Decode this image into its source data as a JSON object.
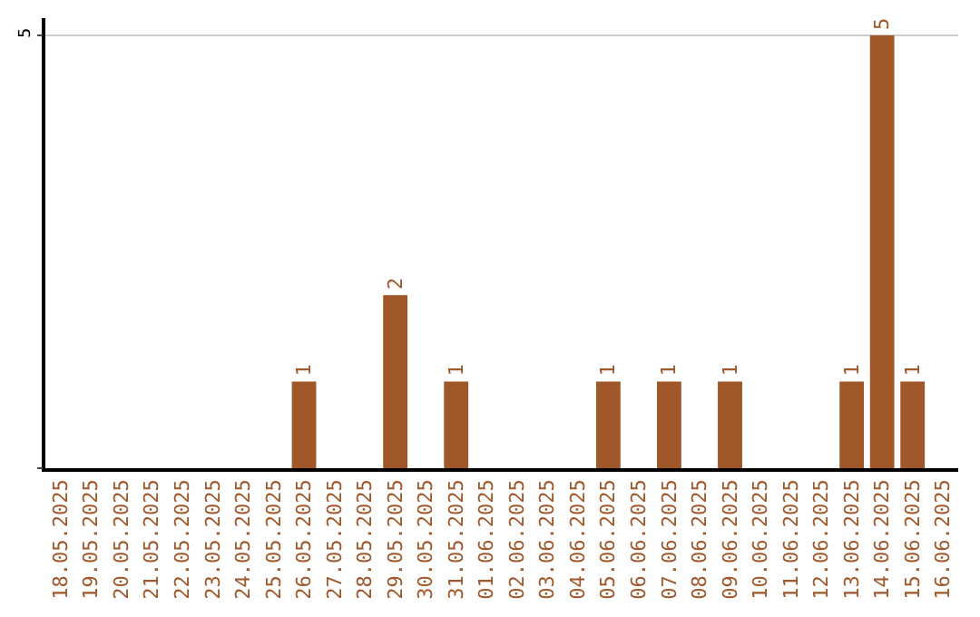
{
  "chart_data": {
    "type": "bar",
    "categories": [
      "18.05.2025",
      "19.05.2025",
      "20.05.2025",
      "21.05.2025",
      "22.05.2025",
      "23.05.2025",
      "24.05.2025",
      "25.05.2025",
      "26.05.2025",
      "27.05.2025",
      "28.05.2025",
      "29.05.2025",
      "30.05.2025",
      "31.05.2025",
      "01.06.2025",
      "02.06.2025",
      "03.06.2025",
      "04.06.2025",
      "05.06.2025",
      "06.06.2025",
      "07.06.2025",
      "08.06.2025",
      "09.06.2025",
      "10.06.2025",
      "11.06.2025",
      "12.06.2025",
      "13.06.2025",
      "14.06.2025",
      "15.06.2025",
      "16.06.2025"
    ],
    "values": [
      0,
      0,
      0,
      0,
      0,
      0,
      0,
      0,
      1,
      0,
      0,
      2,
      0,
      1,
      0,
      0,
      0,
      0,
      1,
      0,
      1,
      0,
      1,
      0,
      0,
      0,
      1,
      5,
      1,
      0
    ],
    "value_labels": [
      null,
      null,
      null,
      null,
      null,
      null,
      null,
      null,
      "1",
      null,
      null,
      "2",
      null,
      "1",
      null,
      null,
      null,
      null,
      "1",
      null,
      "1",
      null,
      "1",
      null,
      null,
      null,
      "1",
      "5",
      "1",
      null
    ],
    "color": "#a0582a",
    "ylim": [
      0,
      5.2
    ],
    "yticks": [
      {
        "value": 0,
        "label": null
      },
      5
    ],
    "grid": "y"
  }
}
